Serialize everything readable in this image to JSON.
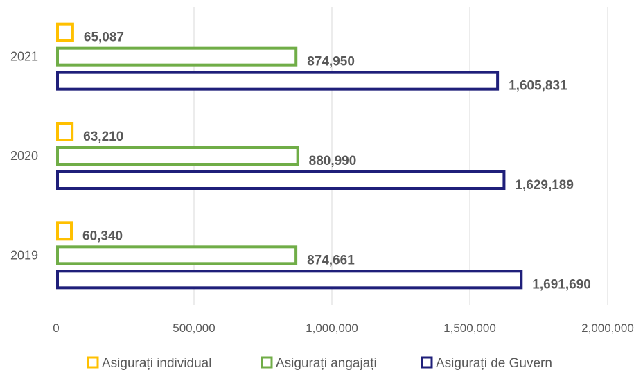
{
  "chart_data": {
    "type": "bar",
    "orientation": "horizontal",
    "categories": [
      "2019",
      "2020",
      "2021"
    ],
    "series": [
      {
        "name": "Asigurați individual",
        "values": [
          60340,
          63210,
          65087
        ],
        "color": "#FFC000",
        "labels": [
          "60,340",
          "63,210",
          "65,087"
        ]
      },
      {
        "name": "Asigurați angajați",
        "values": [
          874661,
          880990,
          874950
        ],
        "color": "#70AD47",
        "labels": [
          "874,661",
          "880,990",
          "874,950"
        ]
      },
      {
        "name": "Asigurați de Guvern",
        "values": [
          1691690,
          1629189,
          1605831
        ],
        "color": "#1F1F7A",
        "labels": [
          "1,691,690",
          "1,629,189",
          "1,605,831"
        ]
      }
    ],
    "xlim": [
      0,
      2000000
    ],
    "xticks": [
      0,
      500000,
      1000000,
      1500000,
      2000000
    ],
    "xtick_labels": [
      "0",
      "500,000",
      "1,000,000",
      "1,500,000",
      "2,000,000"
    ],
    "grid": true,
    "legend_position": "bottom",
    "title": "",
    "xlabel": "",
    "ylabel": ""
  }
}
